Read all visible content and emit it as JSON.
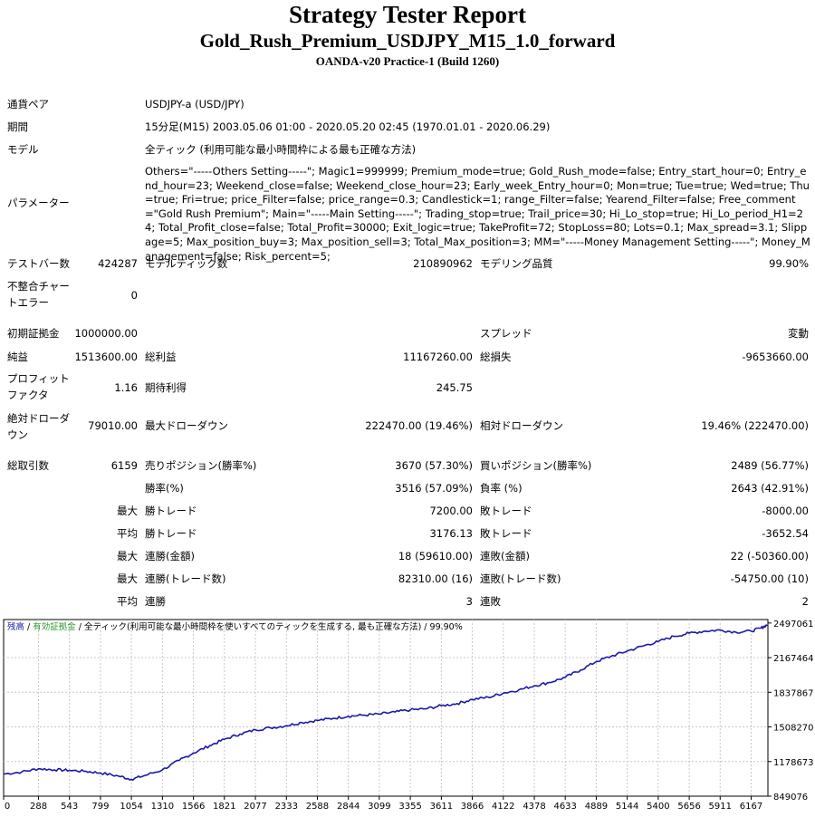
{
  "header": {
    "title": "Strategy Tester Report",
    "subtitle": "Gold_Rush_Premium_USDJPY_M15_1.0_forward",
    "server": "OANDA-v20 Practice-1 (Build 1260)"
  },
  "info": {
    "pair_label": "通貨ペア",
    "pair_value": "USDJPY-a (USD/JPY)",
    "period_label": "期間",
    "period_value": "15分足(M15) 2003.05.06 01:00 - 2020.05.20 02:45 (1970.01.01 - 2020.06.29)",
    "model_label": "モデル",
    "model_value": "全ティック (利用可能な最小時間枠による最も正確な方法)",
    "params_label": "パラメーター",
    "params_value": "Others=\"-----Others Setting-----\"; Magic1=999999; Premium_mode=true; Gold_Rush_mode=false; Entry_start_hour=0; Entry_end_hour=23; Weekend_close=false; Weekend_close_hour=23; Early_week_Entry_hour=0; Mon=true; Tue=true; Wed=true; Thu=true; Fri=true; price_Filter=false; price_range=0.3; Candlestick=1; range_Filter=false; Yearend_Filter=false; Free_comment=\"Gold Rush Premium\"; Main=\"-----Main Setting-----\"; Trading_stop=true; Trail_price=30; Hi_Lo_stop=true; Hi_Lo_period_H1=24; Total_Profit_close=false; Total_Profit=30000; Exit_logic=true; TakeProfit=72; StopLoss=80; Lots=0.1; Max_spread=3.1; Slippage=5; Max_position_buy=3; Max_position_sell=3; Total_Max_position=3; MM=\"-----Money Management Setting-----\"; Money_Management=false; Risk_percent=5;"
  },
  "stats": {
    "bars_label": "テストバー数",
    "bars_value": "424287",
    "ticks_label": "モデルティック数",
    "ticks_value": "210890962",
    "quality_label": "モデリング品質",
    "quality_value": "99.90%",
    "mismatch_label_1": "不整合チャー",
    "mismatch_label_2": "トエラー",
    "mismatch_value": "0",
    "deposit_label": "初期証拠金",
    "deposit_value": "1000000.00",
    "spread_label": "スプレッド",
    "spread_value": "変動",
    "net_label": "純益",
    "net_value": "1513600.00",
    "gross_profit_label": "総利益",
    "gross_profit_value": "11167260.00",
    "gross_loss_label": "総損失",
    "gross_loss_value": "-9653660.00",
    "pf_label_1": "プロフィット",
    "pf_label_2": "ファクタ",
    "pf_value": "1.16",
    "expected_label": "期待利得",
    "expected_value": "245.75",
    "abs_dd_label_1": "絶対ドローダ",
    "abs_dd_label_2": "ウン",
    "abs_dd_value": "79010.00",
    "max_dd_label": "最大ドローダウン",
    "max_dd_value": "222470.00 (19.46%)",
    "rel_dd_label": "相対ドローダウン",
    "rel_dd_value": "19.46% (222470.00)",
    "trades_label": "総取引数",
    "trades_value": "6159",
    "short_label": "売りポジション(勝率%)",
    "short_value": "3670 (57.30%)",
    "long_label": "買いポジション(勝率%)",
    "long_value": "2489 (56.77%)",
    "win_label": "勝率(%)",
    "win_value": "3516 (57.09%)",
    "loss_label": "負率 (%)",
    "loss_value": "2643 (42.91%)",
    "max_word": "最大",
    "avg_word": "平均",
    "win_trade_label": "勝トレード",
    "loss_trade_label": "敗トレード",
    "max_win_value": "7200.00",
    "max_loss_value": "-8000.00",
    "avg_win_value": "3176.13",
    "avg_loss_value": "-3652.54",
    "cons_win_money_label": "連勝(金額)",
    "cons_win_money_value": "18 (59610.00)",
    "cons_loss_money_label": "連敗(金額)",
    "cons_loss_money_value": "22 (-50360.00)",
    "cons_win_count_label": "連勝(トレード数)",
    "cons_win_count_value": "82310.00 (16)",
    "cons_loss_count_label": "連敗(トレード数)",
    "cons_loss_count_value": "-54750.00 (10)",
    "avg_cons_win_label": "連勝",
    "avg_cons_win_value": "3",
    "avg_cons_loss_label": "連敗",
    "avg_cons_loss_value": "2"
  },
  "chart_data": {
    "type": "line",
    "legend": {
      "balance": "残高",
      "sep": " / ",
      "equity": "有効証拠金",
      "rest": " / 全ティック(利用可能な最小時間枠を使いすべてのティックを生成する, 最も正確な方法) / 99.90%"
    },
    "x_ticks": [
      "0",
      "288",
      "543",
      "799",
      "1054",
      "1310",
      "1566",
      "1821",
      "2077",
      "2333",
      "2588",
      "2844",
      "3099",
      "3355",
      "3611",
      "3866",
      "4122",
      "4378",
      "4633",
      "4889",
      "5144",
      "5400",
      "5656",
      "5911",
      "6167"
    ],
    "y_ticks": [
      "2497061",
      "2167464",
      "1837867",
      "1508270",
      "1178673",
      "849076"
    ],
    "xlim": [
      0,
      6305
    ],
    "ylim": [
      849076,
      2530000
    ],
    "colors": {
      "balance": "#1a1aa6",
      "equity": "#2e9a2e",
      "grid": "#c8c8c8"
    },
    "series": [
      {
        "name": "残高",
        "x": [
          0,
          150,
          288,
          420,
          543,
          680,
          799,
          950,
          1054,
          1150,
          1310,
          1450,
          1566,
          1700,
          1821,
          1950,
          2077,
          2200,
          2333,
          2460,
          2588,
          2720,
          2844,
          2970,
          3099,
          3230,
          3355,
          3480,
          3611,
          3740,
          3866,
          4000,
          4122,
          4250,
          4378,
          4500,
          4633,
          4760,
          4889,
          5010,
          5144,
          5280,
          5400,
          5530,
          5656,
          5790,
          5911,
          6040,
          6167,
          6250,
          6300
        ],
        "y": [
          1060000,
          1080000,
          1110000,
          1100000,
          1095000,
          1085000,
          1070000,
          1040000,
          1010000,
          1040000,
          1100000,
          1190000,
          1260000,
          1330000,
          1390000,
          1440000,
          1480000,
          1500000,
          1520000,
          1550000,
          1570000,
          1590000,
          1610000,
          1620000,
          1630000,
          1650000,
          1670000,
          1680000,
          1710000,
          1730000,
          1770000,
          1790000,
          1830000,
          1860000,
          1900000,
          1930000,
          1980000,
          2050000,
          2130000,
          2180000,
          2230000,
          2280000,
          2320000,
          2370000,
          2400000,
          2420000,
          2430000,
          2410000,
          2420000,
          2450000,
          2480000
        ]
      }
    ]
  }
}
